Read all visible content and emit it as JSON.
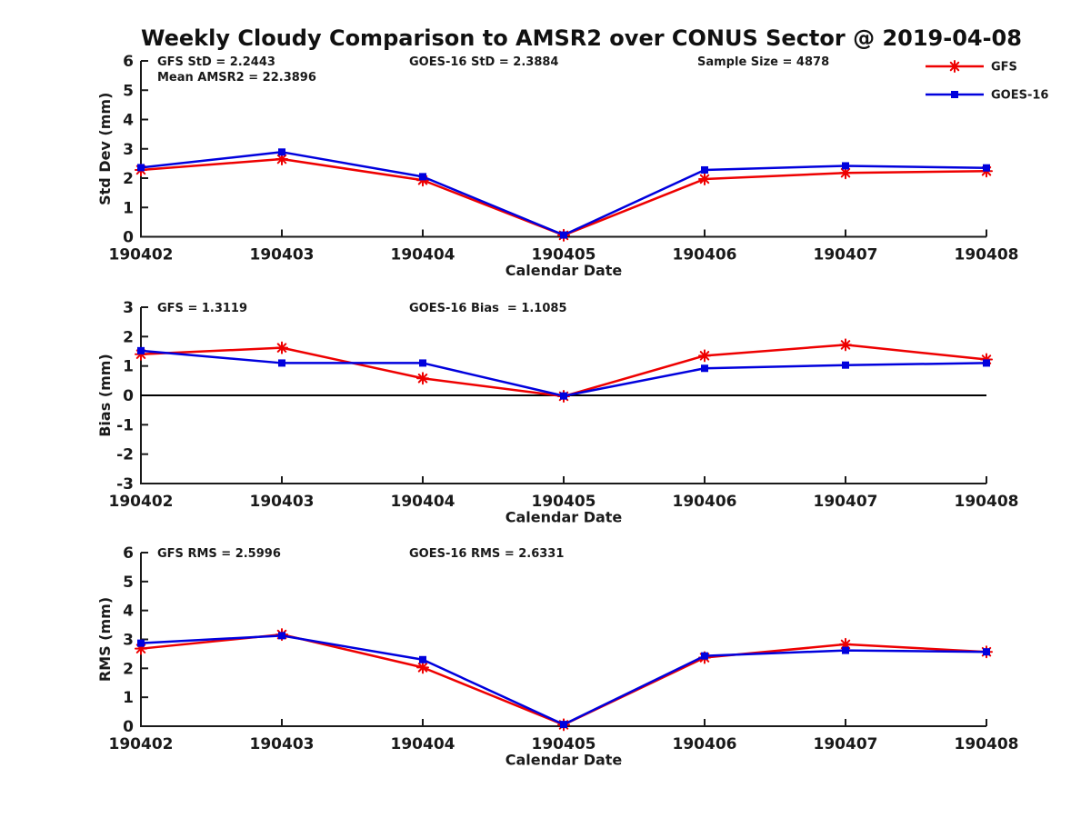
{
  "title": "Weekly Cloudy Comparison to AMSR2 over CONUS Sector @ 2019-04-08",
  "colors": {
    "gfs": "#ee0000",
    "goes16": "#0000dd",
    "axis": "#1a1a1a",
    "text": "#1a1a1a",
    "zero_line": "#000000",
    "background": "#ffffff"
  },
  "legend": {
    "items": [
      {
        "label": "GFS",
        "series": "gfs",
        "marker": "asterisk"
      },
      {
        "label": "GOES-16",
        "series": "goes16",
        "marker": "square"
      }
    ]
  },
  "x_axis": {
    "label": "Calendar Date",
    "categories": [
      "190402",
      "190403",
      "190404",
      "190405",
      "190406",
      "190407",
      "190408"
    ]
  },
  "chart_data": [
    {
      "type": "line",
      "ylabel": "Std Dev (mm)",
      "ylim": [
        0,
        6
      ],
      "yticks": [
        0,
        1,
        2,
        3,
        4,
        5,
        6
      ],
      "zero_line": false,
      "annotations": [
        {
          "text": "GFS StD = 2.2443",
          "col": 0,
          "row": 0
        },
        {
          "text": "Mean AMSR2 = 22.3896",
          "col": 0,
          "row": 1
        },
        {
          "text": "GOES-16 StD = 2.3884",
          "col": 1,
          "row": 0
        },
        {
          "text": "Sample Size = 4878",
          "col": 2,
          "row": 0
        }
      ],
      "series": [
        {
          "name": "GFS",
          "key": "gfs",
          "marker": "asterisk",
          "values": [
            2.28,
            2.65,
            1.93,
            0.05,
            1.97,
            2.18,
            2.24
          ]
        },
        {
          "name": "GOES-16",
          "key": "goes16",
          "marker": "square",
          "values": [
            2.36,
            2.89,
            2.05,
            0.06,
            2.28,
            2.42,
            2.35
          ]
        }
      ]
    },
    {
      "type": "line",
      "ylabel": "Bias (mm)",
      "ylim": [
        -3,
        3
      ],
      "yticks": [
        -3,
        -2,
        -1,
        0,
        1,
        2,
        3
      ],
      "zero_line": true,
      "annotations": [
        {
          "text": "GFS = 1.3119",
          "col": 0,
          "row": 0
        },
        {
          "text": "GOES-16 Bias  = 1.1085",
          "col": 1,
          "row": 0
        }
      ],
      "series": [
        {
          "name": "GFS",
          "key": "gfs",
          "marker": "asterisk",
          "values": [
            1.4,
            1.62,
            0.58,
            -0.03,
            1.35,
            1.72,
            1.22
          ]
        },
        {
          "name": "GOES-16",
          "key": "goes16",
          "marker": "square",
          "values": [
            1.52,
            1.1,
            1.1,
            -0.02,
            0.92,
            1.03,
            1.1
          ]
        }
      ]
    },
    {
      "type": "line",
      "ylabel": "RMS (mm)",
      "ylim": [
        0,
        6
      ],
      "yticks": [
        0,
        1,
        2,
        3,
        4,
        5,
        6
      ],
      "zero_line": false,
      "annotations": [
        {
          "text": "GFS RMS = 2.5996",
          "col": 0,
          "row": 0
        },
        {
          "text": "GOES-16 RMS = 2.6331",
          "col": 1,
          "row": 0
        }
      ],
      "series": [
        {
          "name": "GFS",
          "key": "gfs",
          "marker": "asterisk",
          "values": [
            2.68,
            3.17,
            2.03,
            0.05,
            2.37,
            2.83,
            2.57
          ]
        },
        {
          "name": "GOES-16",
          "key": "goes16",
          "marker": "square",
          "values": [
            2.87,
            3.13,
            2.3,
            0.06,
            2.43,
            2.62,
            2.57
          ]
        }
      ]
    }
  ]
}
